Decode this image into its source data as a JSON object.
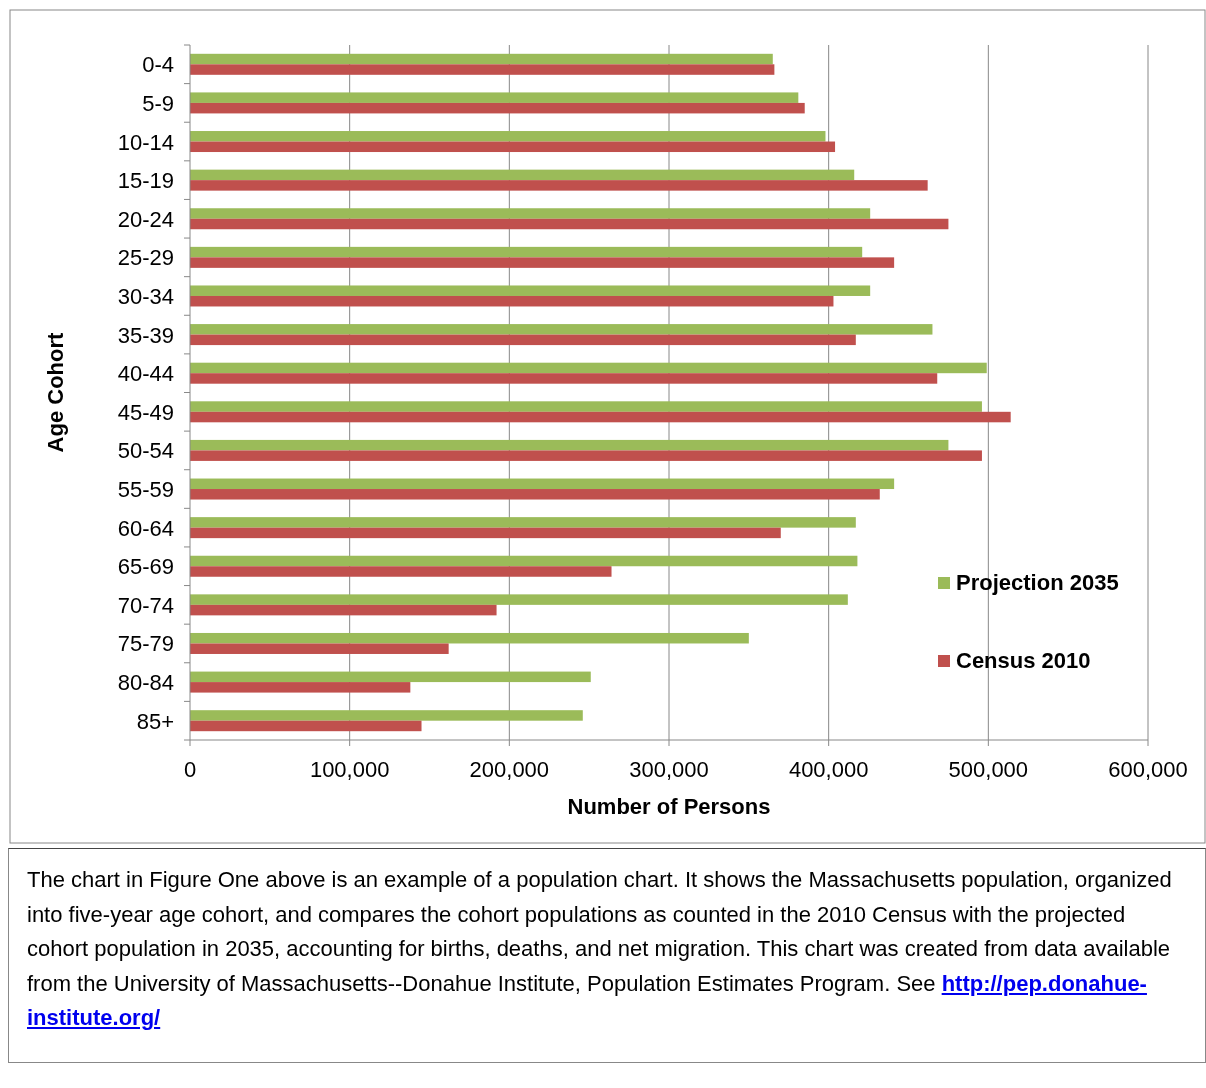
{
  "chart_data": {
    "type": "bar",
    "orientation": "horizontal",
    "xlabel": "Number of Persons",
    "ylabel": "Age Cohort",
    "categories": [
      "0-4",
      "5-9",
      "10-14",
      "15-19",
      "20-24",
      "25-29",
      "30-34",
      "35-39",
      "40-44",
      "45-49",
      "50-54",
      "55-59",
      "60-64",
      "65-69",
      "70-74",
      "75-79",
      "80-84",
      "85+"
    ],
    "series": [
      {
        "name": "Projection 2035",
        "color": "#9bbb59",
        "values": [
          365000,
          381000,
          398000,
          416000,
          426000,
          421000,
          426000,
          465000,
          499000,
          496000,
          475000,
          441000,
          417000,
          418000,
          412000,
          350000,
          251000,
          246000
        ]
      },
      {
        "name": "Census 2010",
        "color": "#c0504d",
        "values": [
          366000,
          385000,
          404000,
          462000,
          475000,
          441000,
          403000,
          417000,
          468000,
          514000,
          496000,
          432000,
          370000,
          264000,
          192000,
          162000,
          138000,
          145000
        ]
      }
    ],
    "xlim": [
      0,
      600000
    ],
    "xticks": [
      {
        "value": 0,
        "label": "0"
      },
      {
        "value": 100000,
        "label": "100,000"
      },
      {
        "value": 200000,
        "label": "200,000"
      },
      {
        "value": 300000,
        "label": "300,000"
      },
      {
        "value": 400000,
        "label": "400,000"
      },
      {
        "value": 500000,
        "label": "500,000"
      },
      {
        "value": 600000,
        "label": "600,000"
      }
    ],
    "grid": "x",
    "legend": "right",
    "annotations": [
      "The chart in Figure One above is an example of a population chart.  It shows the Massachusetts population, organized into five-year age cohort, and compares the cohort populations as counted in the 2010 Census with the projected cohort population in 2035, accounting for births, deaths, and net migration. This chart was created from data available from the University of Massachusetts--Donahue Institute, Population Estimates Program.  See",
      "http://pep.donahue-institute.org/"
    ]
  }
}
